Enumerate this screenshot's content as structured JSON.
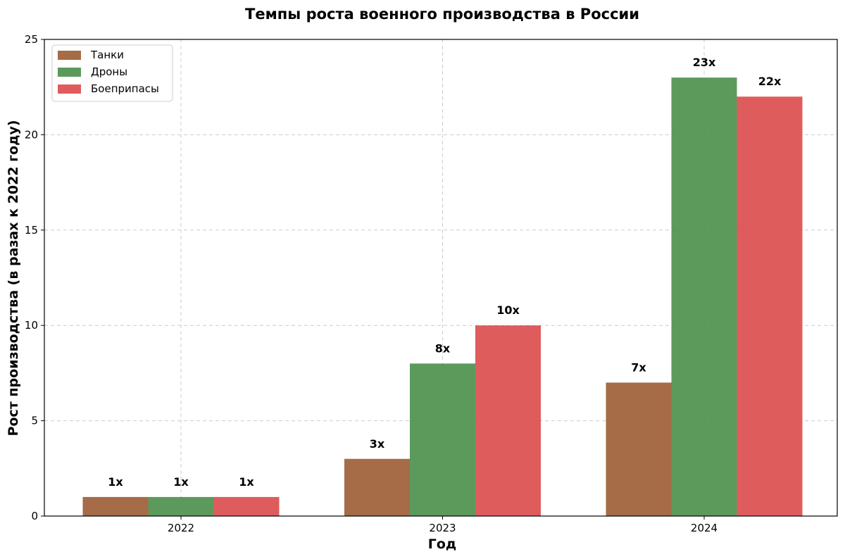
{
  "chart_data": {
    "type": "bar",
    "title": "Темпы роста военного производства в России",
    "xlabel": "Год",
    "ylabel": "Рост производства (в разах к 2022 году)",
    "categories": [
      "2022",
      "2023",
      "2024"
    ],
    "series": [
      {
        "name": "Танки",
        "color": "#9c5b33",
        "values": [
          1,
          3,
          7
        ],
        "labels": [
          "1x",
          "3x",
          "7x"
        ]
      },
      {
        "name": "Дроны",
        "color": "#4a8f4a",
        "values": [
          1,
          8,
          23
        ],
        "labels": [
          "1x",
          "8x",
          "23x"
        ]
      },
      {
        "name": "Боеприпасы",
        "color": "#dc4a4a",
        "values": [
          1,
          10,
          22
        ],
        "labels": [
          "1x",
          "10x",
          "22x"
        ]
      }
    ],
    "ylim": [
      0,
      25
    ],
    "yticks": [
      0,
      5,
      10,
      15,
      20,
      25
    ],
    "grid": true,
    "legend": "top-left"
  }
}
